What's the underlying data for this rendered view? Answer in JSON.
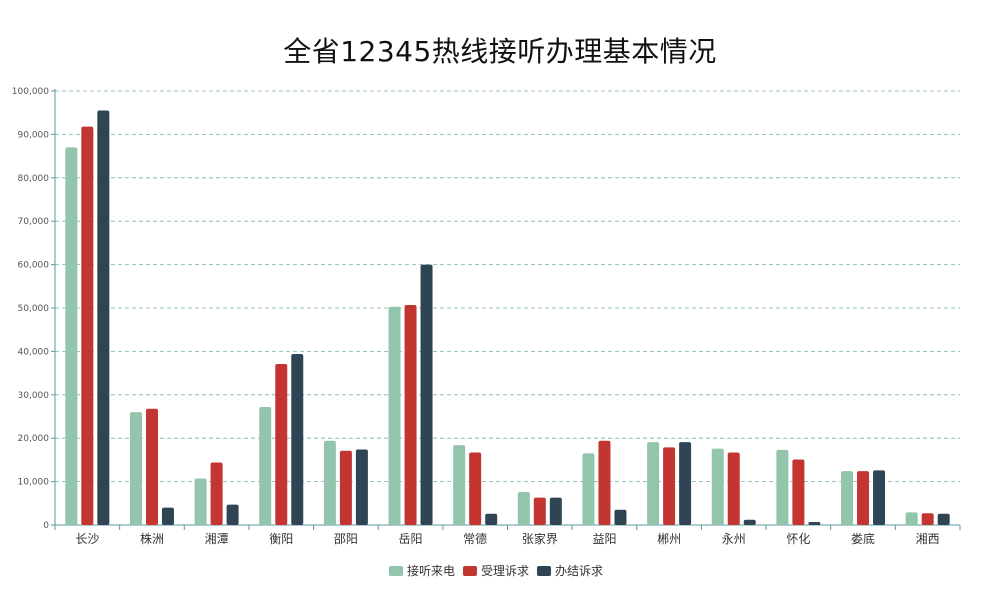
{
  "chart_data": {
    "type": "bar",
    "title": "全省12345热线接听办理基本情况",
    "xlabel": "",
    "ylabel": "",
    "ylim": [
      0,
      100000
    ],
    "yticks": [
      "0",
      "10,000",
      "20,000",
      "30,000",
      "40,000",
      "50,000",
      "60,000",
      "70,000",
      "80,000",
      "90,000",
      "100,000"
    ],
    "grid": true,
    "legend_position": "bottom",
    "categories": [
      "长沙",
      "株洲",
      "湘潭",
      "衡阳",
      "邵阳",
      "岳阳",
      "常德",
      "张家界",
      "益阳",
      "郴州",
      "永州",
      "怀化",
      "娄底",
      "湘西"
    ],
    "series": [
      {
        "name": "接听来电",
        "color": "#93c5ac",
        "values": [
          87000,
          26000,
          10700,
          27200,
          19400,
          50300,
          18400,
          7600,
          16500,
          19100,
          17600,
          17300,
          12400,
          2900
        ]
      },
      {
        "name": "受理诉求",
        "color": "#c23531",
        "values": [
          91800,
          26800,
          14400,
          37100,
          17100,
          50700,
          16700,
          6300,
          19400,
          17900,
          16700,
          15100,
          12400,
          2700
        ]
      },
      {
        "name": "办结诉求",
        "color": "#2f4554",
        "values": [
          95500,
          4000,
          4700,
          39400,
          17400,
          60000,
          2600,
          6300,
          3500,
          19100,
          1200,
          700,
          12600,
          2600
        ]
      }
    ]
  }
}
